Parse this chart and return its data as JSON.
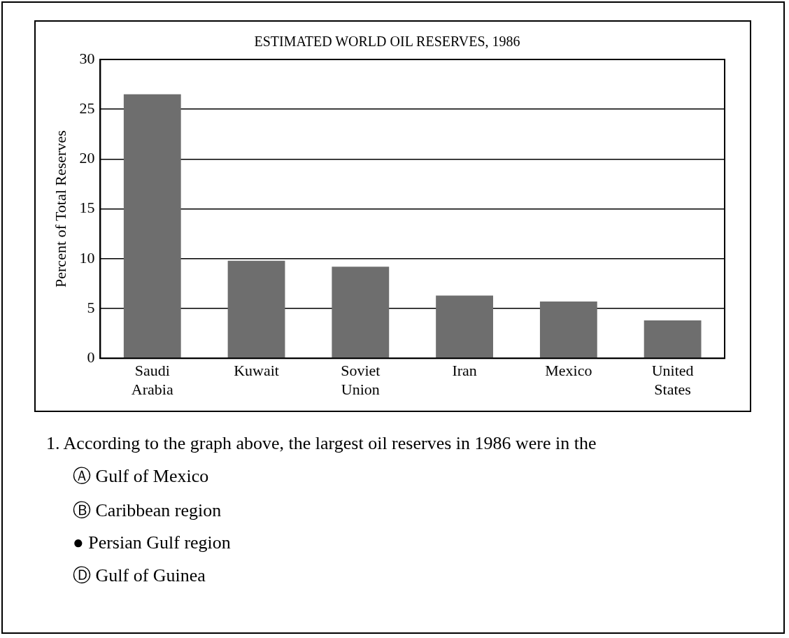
{
  "chart_data": {
    "type": "bar",
    "title": "ESTIMATED WORLD OIL RESERVES, 1986",
    "ylabel": "Percent of Total Reserves",
    "categories": [
      "Saudi Arabia",
      "Kuwait",
      "Soviet Union",
      "Iran",
      "Mexico",
      "United States"
    ],
    "values": [
      26.5,
      9.8,
      9.2,
      6.3,
      5.7,
      3.8
    ],
    "color": "#6e6e6e",
    "ylim": [
      0,
      30
    ],
    "yticks": [
      0,
      5,
      10,
      15,
      20,
      25,
      30
    ],
    "grid": "y",
    "legend": false,
    "annotations": [
      "1. According to the graph above, the largest oil reserves in 1986 were in the",
      "Ⓐ Gulf of Mexico",
      "Ⓑ Caribbean region",
      "● Persian Gulf region",
      "Ⓓ Gulf of Guinea"
    ]
  }
}
